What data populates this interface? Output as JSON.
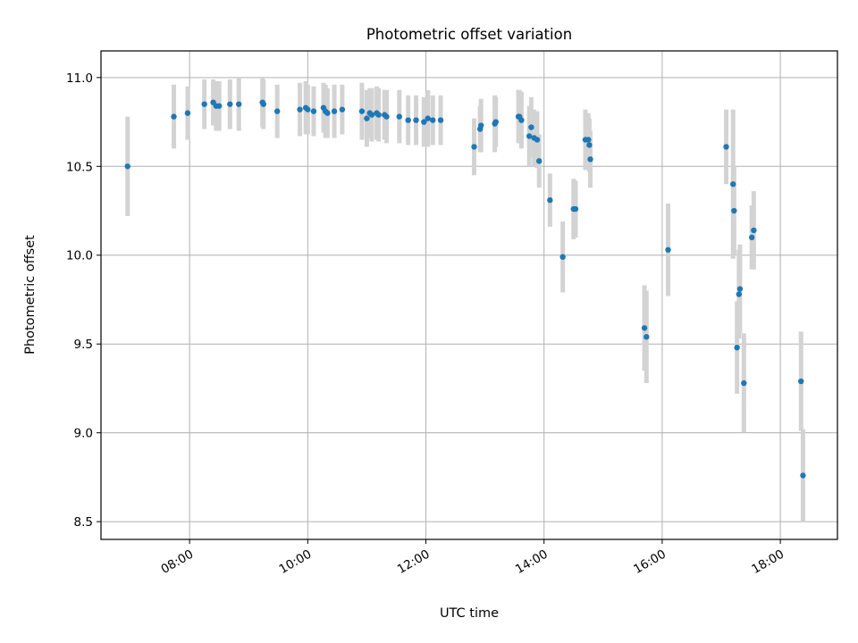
{
  "chart_data": {
    "type": "scatter",
    "title": "Photometric offset variation",
    "xlabel": "UTC time",
    "ylabel": "Photometric offset",
    "x_unit": "hours UTC",
    "xlim": [
      "06:30",
      "18:58"
    ],
    "ylim": [
      8.4,
      11.15
    ],
    "x_ticks": [
      "08:00",
      "10:00",
      "12:00",
      "14:00",
      "16:00",
      "18:00"
    ],
    "y_ticks": [
      "8.5",
      "9.0",
      "9.5",
      "10.0",
      "10.5",
      "11.0"
    ],
    "grid": true,
    "errorbar_color": "#d3d3d3",
    "marker_color": "#1f77b4",
    "series": [
      {
        "x": [
          "06:57",
          "07:44",
          "07:58",
          "08:15",
          "08:24",
          "08:27",
          "08:30",
          "08:41",
          "08:50",
          "09:14",
          "09:15",
          "09:29",
          "09:52",
          "09:58",
          "10:00",
          "10:06",
          "10:16",
          "10:18",
          "10:20",
          "10:27",
          "10:35",
          "10:55",
          "11:00",
          "11:03",
          "11:05",
          "11:10",
          "11:12",
          "11:18",
          "11:20",
          "11:33",
          "11:42",
          "11:50",
          "11:58",
          "12:02",
          "12:07",
          "12:15",
          "12:49",
          "12:55",
          "12:56",
          "13:10",
          "13:11",
          "13:34",
          "13:35",
          "13:37",
          "13:45",
          "13:47",
          "13:50",
          "13:53",
          "13:55",
          "14:06",
          "14:19",
          "14:30",
          "14:32",
          "14:42",
          "14:45",
          "14:46",
          "14:47",
          "15:42",
          "15:44",
          "16:06",
          "17:05",
          "17:12",
          "17:13",
          "17:16",
          "17:18",
          "17:19",
          "17:23",
          "17:31",
          "17:33"
        ],
        "y": [
          10.5,
          10.78,
          10.8,
          10.85,
          10.86,
          10.84,
          10.84,
          10.85,
          10.85,
          10.86,
          10.85,
          10.81,
          10.82,
          10.83,
          10.82,
          10.81,
          10.83,
          10.81,
          10.8,
          10.81,
          10.82,
          10.81,
          10.77,
          10.8,
          10.79,
          10.8,
          10.79,
          10.79,
          10.78,
          10.78,
          10.76,
          10.76,
          10.75,
          10.77,
          10.76,
          10.76,
          10.61,
          10.71,
          10.73,
          10.74,
          10.75,
          10.78,
          10.78,
          10.76,
          10.67,
          10.72,
          10.66,
          10.65,
          10.53,
          10.31,
          9.99,
          10.26,
          10.26,
          10.65,
          10.65,
          10.62,
          10.54,
          9.59,
          9.54,
          10.03,
          10.61,
          10.4,
          10.25,
          9.48,
          9.78,
          9.81,
          9.28,
          10.1,
          10.14
        ],
        "err": [
          0.28,
          0.18,
          0.15,
          0.14,
          0.13,
          0.14,
          0.14,
          0.14,
          0.15,
          0.14,
          0.14,
          0.15,
          0.15,
          0.15,
          0.14,
          0.14,
          0.14,
          0.15,
          0.14,
          0.15,
          0.14,
          0.16,
          0.16,
          0.14,
          0.15,
          0.15,
          0.15,
          0.14,
          0.15,
          0.15,
          0.14,
          0.14,
          0.14,
          0.16,
          0.14,
          0.14,
          0.16,
          0.13,
          0.15,
          0.16,
          0.14,
          0.15,
          0.15,
          0.16,
          0.17,
          0.17,
          0.16,
          0.16,
          0.15,
          0.15,
          0.2,
          0.17,
          0.16,
          0.17,
          0.15,
          0.15,
          0.16,
          0.24,
          0.26,
          0.26,
          0.21,
          0.42,
          0.25,
          0.26,
          0.25,
          0.25,
          0.28,
          0.18,
          0.22
        ]
      },
      {
        "x": [
          "18:21",
          "18:23"
        ],
        "y": [
          9.29,
          8.76
        ],
        "err": [
          0.28,
          0.26
        ]
      }
    ]
  }
}
